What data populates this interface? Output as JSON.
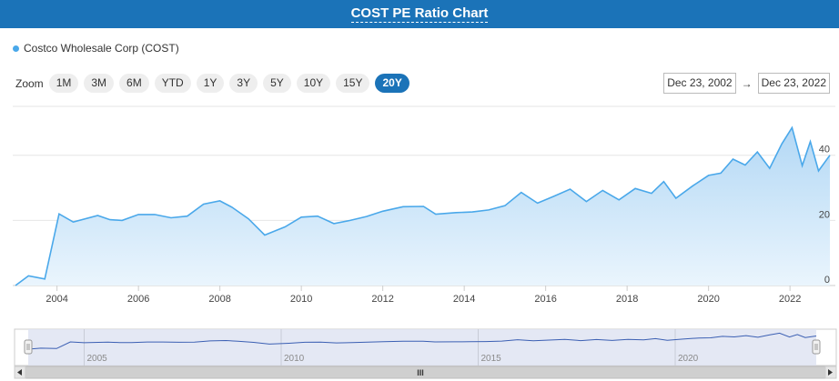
{
  "header": {
    "title": "COST PE Ratio Chart"
  },
  "legend": {
    "label": "Costco Wholesale Corp (COST)",
    "color": "#4aa8ea"
  },
  "zoom": {
    "label": "Zoom",
    "buttons": [
      "1M",
      "3M",
      "6M",
      "YTD",
      "1Y",
      "3Y",
      "5Y",
      "10Y",
      "15Y",
      "20Y"
    ],
    "active": "20Y"
  },
  "range": {
    "from": "Dec 23, 2002",
    "arrow": "→",
    "to": "Dec 23, 2022"
  },
  "chart_data": {
    "type": "area",
    "series": [
      {
        "name": "Costco Wholesale Corp (COST)",
        "x": [
          2002.98,
          2003.3,
          2003.7,
          2004.05,
          2004.4,
          2005.0,
          2005.3,
          2005.6,
          2006.0,
          2006.4,
          2006.8,
          2007.2,
          2007.6,
          2008.0,
          2008.3,
          2008.7,
          2009.1,
          2009.6,
          2010.0,
          2010.4,
          2010.8,
          2011.2,
          2011.6,
          2012.0,
          2012.5,
          2013.0,
          2013.3,
          2013.8,
          2014.2,
          2014.6,
          2015.0,
          2015.4,
          2015.8,
          2016.2,
          2016.6,
          2017.0,
          2017.4,
          2017.8,
          2018.2,
          2018.6,
          2018.9,
          2019.2,
          2019.6,
          2020.0,
          2020.3,
          2020.6,
          2020.9,
          2021.2,
          2021.5,
          2021.8,
          2022.05,
          2022.3,
          2022.5,
          2022.7,
          2022.98
        ],
        "y": [
          0,
          3,
          2,
          22,
          19.5,
          21.5,
          20.2,
          20,
          21.8,
          21.8,
          20.8,
          21.3,
          25,
          26,
          24,
          20.5,
          15.5,
          18,
          21,
          21.3,
          19,
          20,
          21.2,
          22.8,
          24.2,
          24.3,
          21.9,
          22.4,
          22.6,
          23.2,
          24.5,
          28.6,
          25.3,
          27.4,
          29.6,
          25.8,
          29.2,
          26.3,
          29.8,
          28.3,
          31.9,
          26.8,
          30.5,
          33.8,
          34.5,
          38.8,
          37,
          41,
          36,
          43.5,
          48.5,
          36.8,
          44.2,
          35.2,
          40
        ]
      }
    ],
    "ylim": [
      0,
      55
    ],
    "xlim": [
      2002.98,
      2022.98
    ],
    "y_ticks": [
      0,
      20,
      40
    ],
    "x_ticks": [
      "2004",
      "2006",
      "2008",
      "2010",
      "2012",
      "2014",
      "2016",
      "2018",
      "2020",
      "2022"
    ],
    "navigator_ticks": [
      "2005",
      "2010",
      "2015",
      "2020"
    ],
    "navigator_scroll_label": "III",
    "grid": true,
    "line_color": "#4aa8ea",
    "fill_color_top": "#b3d8f5",
    "fill_color_bottom": "#eaf5fd",
    "navigator_line_color": "#3b5fb3"
  }
}
